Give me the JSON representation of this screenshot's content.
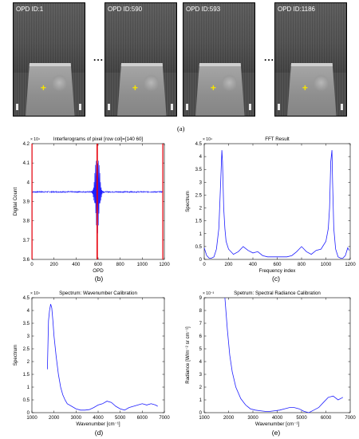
{
  "figure_a": {
    "frames": [
      {
        "label": "OPD ID:1"
      },
      {
        "label": "OPD ID:590"
      },
      {
        "label": "OPD ID:593"
      },
      {
        "label": "OPD ID:1186"
      }
    ],
    "ellipsis": "...",
    "panel_label": "(a)"
  },
  "chart_data": [
    {
      "type": "line",
      "panel_label": "(b)",
      "title": "Interferograms of pixel [row col]=[140  60]",
      "xlabel": "OPD",
      "ylabel": "Digital Count",
      "y_multiplier": "× 10⁴",
      "xlim": [
        0,
        1200
      ],
      "ylim": [
        3.6,
        4.2
      ],
      "xticks": [
        0,
        200,
        400,
        600,
        800,
        1000,
        1200
      ],
      "yticks": [
        3.6,
        3.7,
        3.8,
        3.9,
        4.0,
        4.1,
        4.2
      ],
      "ytick_labels": [
        "3.6",
        "3.7",
        "3.8",
        "3.9",
        "4",
        "4.1",
        "4.2"
      ],
      "baseline": 3.95,
      "zpd_center": 593,
      "zpd_max": 4.17,
      "zpd_min": 3.72,
      "markers_x": [
        1,
        590,
        593,
        1186
      ],
      "marker_color": "#e8000b",
      "line_color": "#1f1fff"
    },
    {
      "type": "line",
      "panel_label": "(c)",
      "title": "FFT Result",
      "xlabel": "Frequency index",
      "ylabel": "Spectrum",
      "y_multiplier": "× 10⁴",
      "xlim": [
        0,
        1200
      ],
      "ylim": [
        0,
        4.5
      ],
      "xticks": [
        0,
        200,
        400,
        600,
        800,
        1000,
        1200
      ],
      "yticks": [
        0,
        0.5,
        1,
        1.5,
        2,
        2.5,
        3,
        3.5,
        4,
        4.5
      ],
      "ytick_labels": [
        "0",
        "0.5",
        "1",
        "1.5",
        "2",
        "2.5",
        "3",
        "3.5",
        "4",
        "4.5"
      ],
      "x": [
        0,
        10,
        20,
        40,
        60,
        80,
        100,
        120,
        135,
        145,
        150,
        160,
        170,
        180,
        200,
        240,
        280,
        320,
        360,
        400,
        440,
        480,
        520,
        560,
        600,
        640,
        680,
        720,
        760,
        800,
        840,
        880,
        920,
        960,
        1000,
        1020,
        1030,
        1040,
        1050,
        1055,
        1065,
        1080,
        1100,
        1120,
        1140,
        1160,
        1170,
        1180,
        1190
      ],
      "y": [
        0.45,
        0.3,
        0.15,
        0.05,
        0.05,
        0.1,
        0.4,
        1.2,
        3.0,
        4.25,
        3.8,
        2.0,
        1.2,
        0.7,
        0.4,
        0.2,
        0.3,
        0.5,
        0.35,
        0.25,
        0.3,
        0.15,
        0.1,
        0.1,
        0.1,
        0.1,
        0.1,
        0.15,
        0.3,
        0.5,
        0.3,
        0.2,
        0.35,
        0.4,
        0.7,
        1.2,
        2.0,
        3.8,
        4.25,
        3.0,
        1.2,
        0.4,
        0.1,
        0.05,
        0.05,
        0.15,
        0.3,
        0.45,
        0.35
      ],
      "line_color": "#1f1fff"
    },
    {
      "type": "line",
      "panel_label": "(d)",
      "title": "Spectrum: Wavenumber Calibration",
      "xlabel": "Wavenumber [cm⁻¹]",
      "ylabel": "Spectrum",
      "y_multiplier": "× 10⁴",
      "xlim": [
        1000,
        7000
      ],
      "ylim": [
        0,
        4.5
      ],
      "xticks": [
        1000,
        2000,
        3000,
        4000,
        5000,
        6000,
        7000
      ],
      "yticks": [
        0,
        0.5,
        1,
        1.5,
        2,
        2.5,
        3,
        3.5,
        4,
        4.5
      ],
      "ytick_labels": [
        "0",
        "0.5",
        "1",
        "1.5",
        "2",
        "2.5",
        "3",
        "3.5",
        "4",
        "4.5"
      ],
      "x": [
        1700,
        1750,
        1800,
        1850,
        1900,
        1950,
        2000,
        2100,
        2200,
        2300,
        2400,
        2500,
        2600,
        2800,
        3000,
        3200,
        3400,
        3600,
        3800,
        4000,
        4200,
        4400,
        4600,
        4800,
        5000,
        5200,
        5400,
        5600,
        5800,
        6000,
        6200,
        6400,
        6600,
        6700
      ],
      "y": [
        1.7,
        3.6,
        4.0,
        4.25,
        4.1,
        3.6,
        3.0,
        2.2,
        1.5,
        1.0,
        0.7,
        0.5,
        0.35,
        0.25,
        0.15,
        0.1,
        0.1,
        0.12,
        0.2,
        0.3,
        0.35,
        0.45,
        0.4,
        0.25,
        0.15,
        0.1,
        0.2,
        0.25,
        0.3,
        0.35,
        0.3,
        0.35,
        0.3,
        0.25
      ],
      "line_color": "#1f1fff"
    },
    {
      "type": "line",
      "panel_label": "(e)",
      "title": "Spetrum: Spectral Radiance Calibration",
      "xlabel": "Wavenumber [cm⁻¹]",
      "ylabel": "Radiance [W/m⁻² sr cm⁻¹]",
      "y_multiplier": "× 10⁻³",
      "xlim": [
        1000,
        7000
      ],
      "ylim": [
        0,
        9
      ],
      "xticks": [
        1000,
        2000,
        3000,
        4000,
        5000,
        6000,
        7000
      ],
      "yticks": [
        0,
        1,
        2,
        3,
        4,
        5,
        6,
        7,
        8,
        9
      ],
      "ytick_labels": [
        "0",
        "1",
        "2",
        "3",
        "4",
        "5",
        "6",
        "7",
        "8",
        "9"
      ],
      "x": [
        1850,
        1950,
        2050,
        2150,
        2300,
        2500,
        2700,
        2900,
        3100,
        3300,
        3500,
        3700,
        3900,
        4100,
        4300,
        4500,
        4700,
        4900,
        5100,
        5300,
        5500,
        5700,
        5900,
        6100,
        6300,
        6500,
        6700
      ],
      "y": [
        9.0,
        6.5,
        4.5,
        3.2,
        2.0,
        1.1,
        0.6,
        0.3,
        0.2,
        0.15,
        0.1,
        0.1,
        0.15,
        0.2,
        0.3,
        0.4,
        0.4,
        0.3,
        0.1,
        0.0,
        0.2,
        0.4,
        0.8,
        1.2,
        1.3,
        1.0,
        1.2
      ],
      "line_color": "#1f1fff"
    }
  ]
}
